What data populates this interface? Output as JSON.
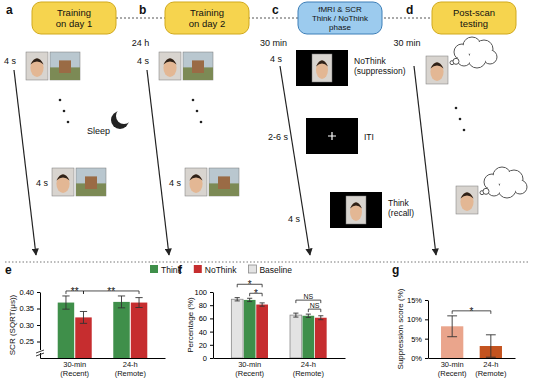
{
  "diagram": {
    "panels": [
      {
        "label": "a",
        "header": "Training\non day 1",
        "times": [
          "4 s",
          "4 s"
        ]
      },
      {
        "label": "b",
        "header": "Training\non day 2",
        "times": [
          "4 s",
          "4 s"
        ]
      },
      {
        "label": "c",
        "header": "fMRI & SCR\nThink / NoThink\nphase",
        "times": [
          "4 s",
          "2-6 s",
          "4 s"
        ],
        "trials": [
          "NoThink\n(suppression)",
          "ITI",
          "Think\n(recall)"
        ]
      },
      {
        "label": "d",
        "header": "Post-scan\ntesting"
      }
    ],
    "intervals": [
      "24 h",
      "30 min",
      "30 min"
    ],
    "sleep": "Sleep"
  },
  "chart_data": [
    {
      "type": "bar",
      "panel_label": "e",
      "ylabel": "SCR (SQRT(μs))",
      "categories": [
        "30-min\n(Recent)",
        "24-h\n(Remote)"
      ],
      "series": [
        {
          "name": "Think",
          "color": "#3f8f4a",
          "values": [
            0.368,
            0.37
          ],
          "errors": [
            0.02,
            0.018
          ]
        },
        {
          "name": "NoThink",
          "color": "#c62d2f",
          "values": [
            0.323,
            0.368
          ],
          "errors": [
            0.018,
            0.015
          ]
        }
      ],
      "ylim": [
        0.2,
        0.4
      ],
      "yticks": [
        0.25,
        {
          "value": 0.3,
          "label": "0.30"
        },
        0.35,
        {
          "value": 0.4,
          "label": "0.40"
        }
      ],
      "annotations": [
        {
          "text": "**",
          "between": [
            [
              0,
              0
            ],
            [
              0,
              1
            ]
          ]
        },
        {
          "text": "**",
          "between": [
            [
              0,
              1
            ],
            [
              1,
              1
            ]
          ]
        }
      ]
    },
    {
      "type": "bar",
      "panel_label": "f",
      "ylabel": "Percentage (%)",
      "categories": [
        "30-min\n(Recent)",
        "24-h\n(Remote)"
      ],
      "series": [
        {
          "name": "Baseline",
          "color": "#e3e3e3",
          "values": [
            89,
            65
          ],
          "errors": [
            2.5,
            3
          ]
        },
        {
          "color": "#3f8f4a",
          "values": [
            88,
            64
          ],
          "errors": [
            2.5,
            2.5
          ]
        },
        {
          "color": "#c62d2f",
          "values": [
            81,
            61
          ],
          "errors": [
            2.5,
            3
          ]
        }
      ],
      "ylim": [
        0,
        100
      ],
      "yticks": [
        0,
        20,
        40,
        60,
        80,
        100
      ],
      "annotations": [
        {
          "text": "*",
          "between": [
            [
              0,
              0
            ],
            [
              0,
              2
            ]
          ]
        },
        {
          "text": "*",
          "between": [
            [
              0,
              1
            ],
            [
              0,
              2
            ]
          ]
        },
        {
          "text": "NS",
          "between": [
            [
              1,
              0
            ],
            [
              1,
              2
            ]
          ]
        },
        {
          "text": "NS",
          "between": [
            [
              1,
              1
            ],
            [
              1,
              2
            ]
          ]
        }
      ]
    },
    {
      "type": "bar",
      "panel_label": "g",
      "ylabel": "Suppression score (%)",
      "categories": [
        "30-min\n(Recent)",
        "24-h\n(Remote)"
      ],
      "series": [
        {
          "colors": [
            "#eaa58c",
            "#c4531f"
          ],
          "values": [
            8.2,
            3.1
          ],
          "errors": [
            2.7,
            2.9
          ]
        }
      ],
      "ylim": [
        0,
        15
      ],
      "yticks": [
        {
          "value": 0,
          "label": "0%"
        },
        {
          "value": 5,
          "label": "5%"
        },
        {
          "value": 10,
          "label": "10%"
        },
        {
          "value": 15,
          "label": "15%"
        }
      ],
      "annotations": [
        {
          "text": "*",
          "between": [
            [
              0,
              0
            ],
            [
              1,
              0
            ]
          ]
        }
      ]
    }
  ]
}
